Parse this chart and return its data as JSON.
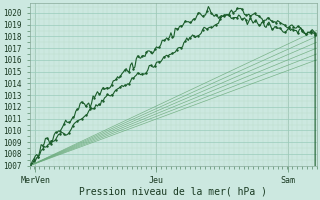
{
  "xlabel": "Pression niveau de la mer( hPa )",
  "bg_color": "#cce8e0",
  "grid_major_color": "#99ccbb",
  "grid_minor_color": "#bbddcc",
  "line_color_dark": "#1a5c2a",
  "line_color_medium": "#2d7a42",
  "line_color_light": "#6aaa7a",
  "ylim": [
    1007,
    1020.8
  ],
  "xlim": [
    0,
    1.0
  ],
  "yticks": [
    1007,
    1008,
    1009,
    1010,
    1011,
    1012,
    1013,
    1014,
    1015,
    1016,
    1017,
    1018,
    1019,
    1020
  ],
  "xtick_labels": [
    "MerVen",
    "Jeu",
    "Sam"
  ],
  "xtick_positions": [
    0.02,
    0.44,
    0.9
  ],
  "n_points": 200,
  "seed": 12
}
